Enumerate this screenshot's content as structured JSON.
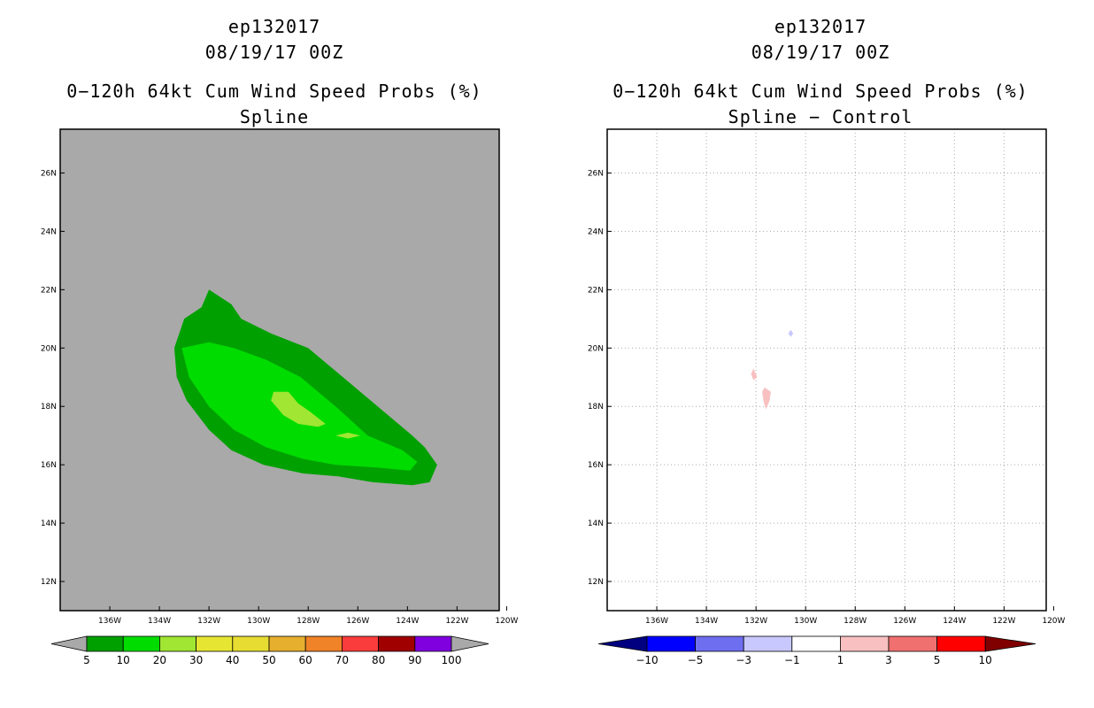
{
  "colors": {
    "land_gray": "#a9a9a9",
    "prob_5": "#00a000",
    "prob_10": "#00dc00",
    "prob_20": "#a0e632",
    "diff_pos": "#f8c0c0",
    "diff_neg": "#c8c8ff"
  },
  "left": {
    "storm_id": "ep132017",
    "datetime": "08/19/17 00Z",
    "title": "0−120h 64kt Cum Wind Speed Probs (%)",
    "subtitle": "Spline"
  },
  "right": {
    "storm_id": "ep132017",
    "datetime": "08/19/17 00Z",
    "title": "0−120h 64kt Cum Wind Speed Probs (%)",
    "subtitle": "Spline − Control"
  },
  "chart_data": [
    {
      "type": "heatmap",
      "title": "0-120h 64kt Cum Wind Speed Probs (%) - Spline",
      "x_range_lon": [
        -138,
        -120.3
      ],
      "y_range_lat": [
        11,
        27.5
      ],
      "x_ticks": [
        -136,
        -134,
        -132,
        -130,
        -128,
        -126,
        -124,
        -122,
        -120
      ],
      "x_tick_labels": [
        "136W",
        "134W",
        "132W",
        "130W",
        "128W",
        "126W",
        "124W",
        "122W",
        "120W"
      ],
      "y_ticks": [
        12,
        14,
        16,
        18,
        20,
        22,
        24,
        26
      ],
      "y_tick_labels": [
        "12N",
        "14N",
        "16N",
        "18N",
        "20N",
        "22N",
        "24N",
        "26N"
      ],
      "grid": false,
      "contours": [
        {
          "level": 5,
          "color": "#00a000",
          "points": [
            [
              -132.0,
              22.0
            ],
            [
              -131.1,
              21.5
            ],
            [
              -130.7,
              21.0
            ],
            [
              -129.5,
              20.5
            ],
            [
              -128.0,
              20.0
            ],
            [
              -126.6,
              19.0
            ],
            [
              -125.2,
              18.0
            ],
            [
              -123.8,
              17.0
            ],
            [
              -123.3,
              16.6
            ],
            [
              -122.8,
              16.0
            ],
            [
              -123.1,
              15.4
            ],
            [
              -123.8,
              15.3
            ],
            [
              -125.4,
              15.4
            ],
            [
              -126.8,
              15.6
            ],
            [
              -128.2,
              15.7
            ],
            [
              -129.8,
              16.0
            ],
            [
              -131.1,
              16.5
            ],
            [
              -132.0,
              17.2
            ],
            [
              -132.9,
              18.2
            ],
            [
              -133.3,
              19.0
            ],
            [
              -133.4,
              20.0
            ],
            [
              -133.0,
              21.0
            ],
            [
              -132.3,
              21.4
            ]
          ]
        },
        {
          "level": 10,
          "color": "#00dc00",
          "points": [
            [
              -133.1,
              20.0
            ],
            [
              -132.0,
              20.2
            ],
            [
              -131.0,
              20.0
            ],
            [
              -129.7,
              19.6
            ],
            [
              -128.3,
              19.0
            ],
            [
              -126.9,
              18.0
            ],
            [
              -125.6,
              17.0
            ],
            [
              -124.2,
              16.5
            ],
            [
              -123.6,
              16.1
            ],
            [
              -123.9,
              15.8
            ],
            [
              -125.2,
              15.9
            ],
            [
              -126.9,
              16.0
            ],
            [
              -128.2,
              16.2
            ],
            [
              -129.7,
              16.6
            ],
            [
              -131.0,
              17.2
            ],
            [
              -132.0,
              18.0
            ],
            [
              -132.8,
              19.0
            ]
          ]
        },
        {
          "level": 20,
          "color": "#a0e632",
          "points": [
            [
              -129.4,
              18.5
            ],
            [
              -128.8,
              18.5
            ],
            [
              -128.4,
              18.1
            ],
            [
              -127.9,
              17.8
            ],
            [
              -127.3,
              17.4
            ],
            [
              -127.6,
              17.3
            ],
            [
              -128.4,
              17.4
            ],
            [
              -129.0,
              17.7
            ],
            [
              -129.5,
              18.2
            ]
          ]
        },
        {
          "level": 20,
          "color": "#a0e632",
          "points": [
            [
              -126.9,
              17.0
            ],
            [
              -126.4,
              17.1
            ],
            [
              -125.9,
              17.0
            ],
            [
              -126.4,
              16.9
            ]
          ]
        }
      ],
      "colorbar": {
        "labels": [
          "5",
          "10",
          "20",
          "30",
          "40",
          "50",
          "60",
          "70",
          "80",
          "90",
          "100"
        ],
        "colors": [
          "#a9a9a9",
          "#00a000",
          "#00dc00",
          "#a0e632",
          "#e6e632",
          "#e6dc32",
          "#e6af2d",
          "#f08228",
          "#fa3c3c",
          "#a00000",
          "#8000e0",
          "#a9a9a9"
        ]
      }
    },
    {
      "type": "heatmap",
      "title": "0-120h 64kt Cum Wind Speed Probs (%) - Spline - Control",
      "x_range_lon": [
        -138,
        -120.3
      ],
      "y_range_lat": [
        11,
        27.5
      ],
      "x_ticks": [
        -136,
        -134,
        -132,
        -130,
        -128,
        -126,
        -124,
        -122,
        -120
      ],
      "x_tick_labels": [
        "136W",
        "134W",
        "132W",
        "130W",
        "128W",
        "126W",
        "124W",
        "122W",
        "120W"
      ],
      "y_ticks": [
        12,
        14,
        16,
        18,
        20,
        22,
        24,
        26
      ],
      "y_tick_labels": [
        "12N",
        "14N",
        "16N",
        "18N",
        "20N",
        "22N",
        "24N",
        "26N"
      ],
      "grid": true,
      "contours": [
        {
          "level": 1,
          "color": "#f8c0c0",
          "points": [
            [
              -132.1,
              19.3
            ],
            [
              -131.95,
              19.0
            ],
            [
              -132.1,
              18.9
            ],
            [
              -132.2,
              19.1
            ]
          ]
        },
        {
          "level": 1,
          "color": "#f8c0c0",
          "points": [
            [
              -131.65,
              18.65
            ],
            [
              -131.4,
              18.5
            ],
            [
              -131.45,
              18.2
            ],
            [
              -131.6,
              17.9
            ],
            [
              -131.7,
              18.2
            ],
            [
              -131.75,
              18.5
            ]
          ]
        },
        {
          "level": -1,
          "color": "#c8c8ff",
          "points": [
            [
              -130.6,
              20.62
            ],
            [
              -130.5,
              20.5
            ],
            [
              -130.6,
              20.38
            ],
            [
              -130.7,
              20.5
            ]
          ]
        }
      ],
      "colorbar": {
        "labels": [
          "−10",
          "−5",
          "−3",
          "−1",
          "1",
          "3",
          "5",
          "10"
        ],
        "colors": [
          "#000080",
          "#0000ff",
          "#6e6ef0",
          "#c8c8ff",
          "#ffffff",
          "#f8c0c0",
          "#f07070",
          "#ff0000",
          "#800000"
        ]
      }
    }
  ]
}
